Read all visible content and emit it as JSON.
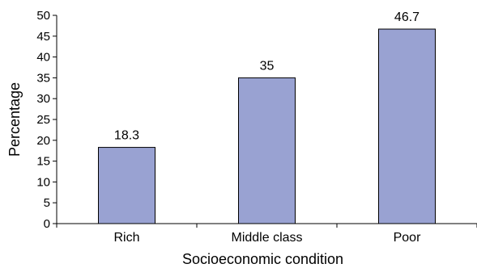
{
  "chart_data": {
    "type": "bar",
    "categories": [
      "Rich",
      "Middle class",
      "Poor"
    ],
    "values": [
      18.3,
      35,
      46.7
    ],
    "data_labels": [
      "18.3",
      "35",
      "46.7"
    ],
    "xlabel": "Socioeconomic condition",
    "ylabel": "Percentage",
    "ylim": [
      0,
      50
    ],
    "yticks": [
      "0",
      "5",
      "10",
      "15",
      "20",
      "25",
      "30",
      "35",
      "40",
      "45",
      "50"
    ],
    "grid": false,
    "bar_color": "#99a2d2",
    "bar_edge_color": "#000000"
  }
}
